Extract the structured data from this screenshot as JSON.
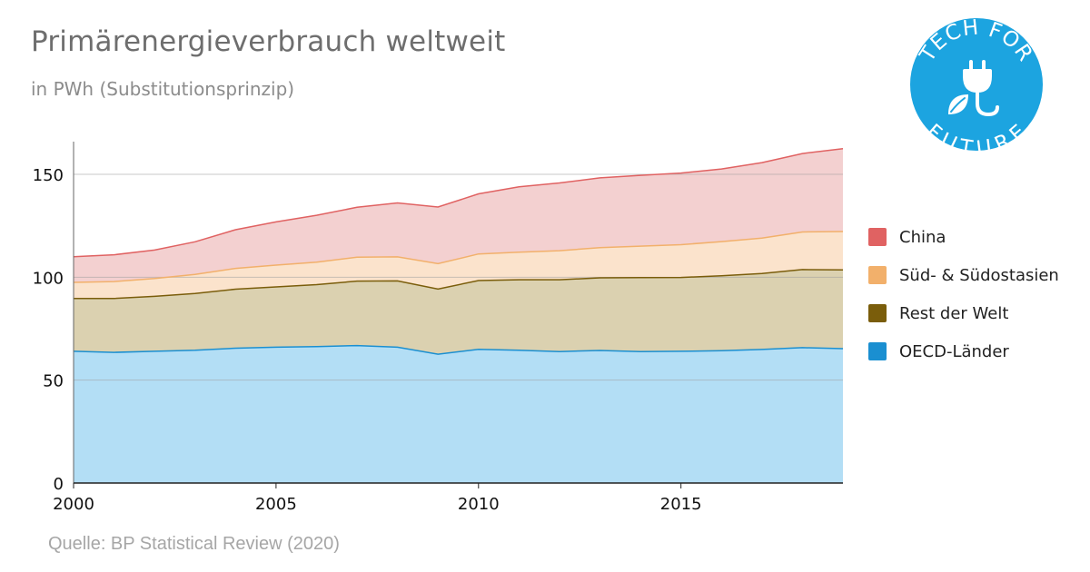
{
  "title": "Primärenergieverbrauch weltweit",
  "subtitle": "in PWh (Substitutionsprinzip)",
  "source": "Quelle: BP Statistical Review (2020)",
  "badge": {
    "top_text": "TECH FOR",
    "bottom_text": "FUTURE",
    "color": "#1ca4e0",
    "icon": "plug-leaf-icon"
  },
  "chart_data": {
    "type": "area",
    "stacked": true,
    "x": [
      2000,
      2001,
      2002,
      2003,
      2004,
      2005,
      2006,
      2007,
      2008,
      2009,
      2010,
      2011,
      2012,
      2013,
      2014,
      2015,
      2016,
      2017,
      2018,
      2019
    ],
    "xlim": [
      2000,
      2019
    ],
    "ylim": [
      0,
      165
    ],
    "x_ticks": [
      "2000",
      "2005",
      "2010",
      "2015"
    ],
    "y_ticks": [
      "0",
      "50",
      "100",
      "150"
    ],
    "grid": "horizontal",
    "legend_position": "right",
    "series": [
      {
        "name": "OECD-Länder",
        "line_color": "#1a8fd1",
        "fill_color": "#b3def5",
        "values": [
          64,
          63.5,
          64,
          64.5,
          65.5,
          66,
          66.3,
          66.8,
          66,
          62.6,
          65,
          64.5,
          63.9,
          64.4,
          63.9,
          64,
          64.3,
          64.9,
          65.8,
          65.3
        ]
      },
      {
        "name": "Rest der Welt",
        "line_color": "#7a5d0b",
        "fill_color": "#dbd1b0",
        "values": [
          25.7,
          26.2,
          26.7,
          27.6,
          28.7,
          29.3,
          30.1,
          31.3,
          32.2,
          31.7,
          33.4,
          34.3,
          34.9,
          35.3,
          35.9,
          35.9,
          36.4,
          36.9,
          37.9,
          38.3
        ]
      },
      {
        "name": "Süd- & Südostasien",
        "line_color": "#f2b06b",
        "fill_color": "#fbe3cc",
        "values": [
          7.8,
          8.2,
          8.7,
          9.3,
          10.1,
          10.6,
          10.9,
          11.6,
          11.7,
          12.3,
          12.9,
          13.4,
          14.1,
          14.7,
          15.3,
          15.9,
          16.6,
          17.2,
          18.3,
          18.6
        ]
      },
      {
        "name": "China",
        "line_color": "#e06262",
        "fill_color": "#f3d0d0",
        "values": [
          12.5,
          13,
          13.8,
          15.8,
          18.8,
          21,
          22.8,
          24.3,
          26.2,
          27.5,
          29.2,
          31.7,
          32.9,
          33.9,
          34.4,
          34.8,
          35.3,
          36.7,
          38.1,
          40.3
        ]
      }
    ]
  }
}
